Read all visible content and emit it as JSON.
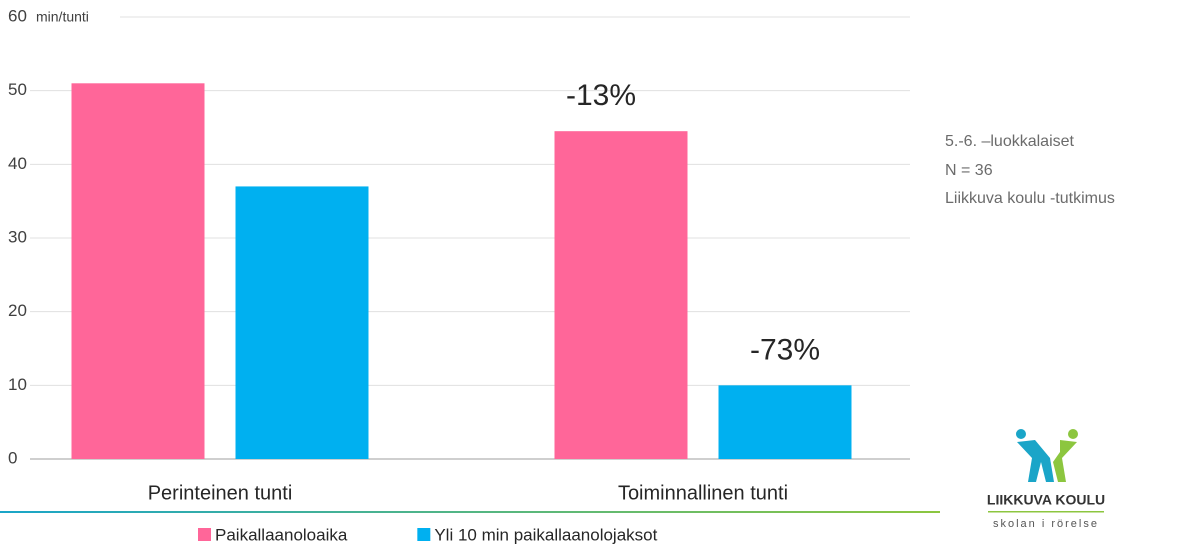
{
  "chart_data": {
    "type": "bar",
    "categories": [
      "Perinteinen tunti",
      "Toiminnallinen tunti"
    ],
    "series": [
      {
        "name": "Paikallaanoloaika",
        "color": "#ff6699",
        "values": [
          51,
          44.5
        ]
      },
      {
        "name": "Yli 10 min paikallaanolojaksot",
        "color": "#00b0f0",
        "values": [
          37,
          10
        ]
      }
    ],
    "ylim": [
      0,
      60
    ],
    "yticks": [
      0,
      10,
      20,
      30,
      40,
      50,
      60
    ],
    "y_unit": "min/tunti",
    "grid": true,
    "legend": "bottom",
    "annotations": [
      "-13%",
      "-73%"
    ]
  },
  "notes": [
    "5.-6. –luokkalaiset",
    "N = 36",
    "Liikkuva koulu -tutkimus"
  ],
  "logo": {
    "title": "LIIKKUVA KOULU",
    "subtitle": "skolan i rörelse"
  }
}
